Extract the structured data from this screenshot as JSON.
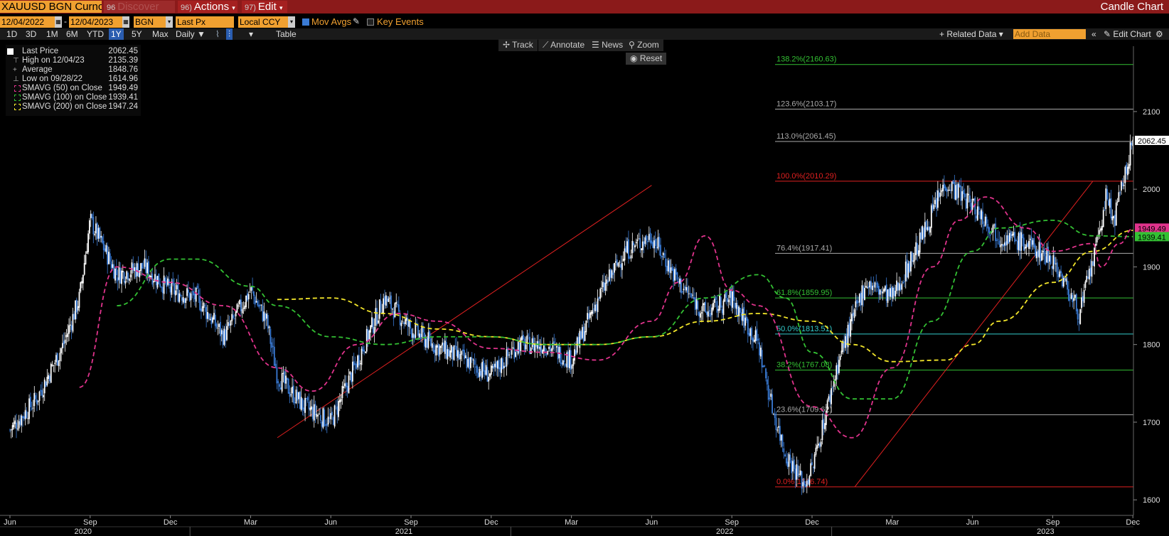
{
  "header": {
    "security": "XAUUSD BGN Curncy",
    "discover_num": "96",
    "discover": "Discover",
    "actions_num": "96)",
    "actions": "Actions",
    "edit_num": "97)",
    "edit": "Edit",
    "chart_type": "Candle Chart"
  },
  "fields": {
    "start_date": "12/04/2022",
    "end_date": "12/04/2023",
    "source": "BGN",
    "price_field": "Last Px",
    "currency": "Local CCY",
    "mov_avgs": "Mov Avgs",
    "key_events": "Key Events"
  },
  "ranges": [
    "1D",
    "3D",
    "1M",
    "6M",
    "YTD",
    "1Y",
    "5Y",
    "Max"
  ],
  "range_active": "1Y",
  "periodicity": "Daily",
  "table_label": "Table",
  "related_data": "Related Data",
  "add_data_placeholder": "Add Data",
  "edit_chart": "Edit Chart",
  "chart_tools": {
    "track": "Track",
    "annotate": "Annotate",
    "news": "News",
    "zoom": "Zoom",
    "reset": "Reset"
  },
  "legend": [
    {
      "label": "Last Price",
      "value": "2062.45",
      "color": "#ffffff",
      "style": "solid"
    },
    {
      "label": "High on 12/04/23",
      "value": "2135.39",
      "color": "#aaaaaa",
      "style": "high"
    },
    {
      "label": "Average",
      "value": "1848.76",
      "color": "#aaaaaa",
      "style": "avg"
    },
    {
      "label": "Low on 09/28/22",
      "value": "1614.96",
      "color": "#aaaaaa",
      "style": "low"
    },
    {
      "label": "SMAVG (50)  on Close",
      "value": "1949.49",
      "color": "#e0338c",
      "style": "dash"
    },
    {
      "label": "SMAVG (100)  on Close",
      "value": "1939.41",
      "color": "#33c033",
      "style": "dash"
    },
    {
      "label": "SMAVG (200)  on Close",
      "value": "1947.24",
      "color": "#f2e52a",
      "style": "dash"
    }
  ],
  "colors": {
    "up_candle": "#ffffff",
    "down_candle": "#3a7bd5",
    "sma50": "#e0338c",
    "sma100": "#33c033",
    "sma200": "#f2e52a",
    "trend": "#e02020",
    "fib_green": "#33c033",
    "fib_gray": "#aaaaaa",
    "fib_red": "#e02020",
    "fib_cyan": "#33cccc"
  },
  "chart_data": {
    "type": "candlestick",
    "title": "",
    "ylim": [
      1580,
      2175
    ],
    "y_ticks": [
      1600,
      1700,
      1800,
      1900,
      2000,
      2100
    ],
    "x_month_labels": [
      "Jun",
      "Sep",
      "Dec",
      "Mar",
      "Jun",
      "Sep",
      "Dec",
      "Mar",
      "Jun",
      "Sep",
      "Dec",
      "Mar",
      "Jun",
      "Sep",
      "Dec"
    ],
    "x_year_labels": [
      "2020",
      "2021",
      "2022",
      "2023"
    ],
    "price_path_month_index": [
      0,
      1,
      2,
      2.6,
      3,
      4,
      5,
      6,
      7,
      8,
      9,
      9.6,
      10,
      11,
      12,
      13,
      14,
      15,
      15.8,
      17,
      18,
      19,
      20,
      21,
      21.5,
      22,
      23,
      24,
      25,
      26,
      27,
      28,
      28.5,
      29,
      29.7,
      30,
      31,
      32,
      33,
      34,
      35,
      36,
      36.5,
      37,
      38,
      39,
      40,
      40.6,
      41,
      41.3,
      42
    ],
    "price_path_close": [
      1690,
      1730,
      1800,
      1860,
      1960,
      1890,
      1900,
      1870,
      1860,
      1810,
      1870,
      1830,
      1760,
      1720,
      1700,
      1780,
      1860,
      1820,
      1800,
      1780,
      1760,
      1800,
      1800,
      1780,
      1820,
      1860,
      1920,
      1940,
      1880,
      1840,
      1860,
      1800,
      1720,
      1660,
      1620,
      1640,
      1780,
      1880,
      1860,
      1930,
      2010,
      1980,
      1960,
      1940,
      1930,
      1910,
      1840,
      1920,
      1990,
      1960,
      2062
    ],
    "sma50": [
      [
        2.6,
        1745
      ],
      [
        4,
        1900
      ],
      [
        6,
        1880
      ],
      [
        8,
        1850
      ],
      [
        10,
        1770
      ],
      [
        11.3,
        1740
      ],
      [
        13,
        1800
      ],
      [
        14.5,
        1840
      ],
      [
        16,
        1830
      ],
      [
        18,
        1795
      ],
      [
        20,
        1790
      ],
      [
        22,
        1780
      ],
      [
        24,
        1830
      ],
      [
        25,
        1880
      ],
      [
        26,
        1940
      ],
      [
        27,
        1870
      ],
      [
        28,
        1850
      ],
      [
        30,
        1720
      ],
      [
        31.5,
        1680
      ],
      [
        33,
        1770
      ],
      [
        34.5,
        1900
      ],
      [
        35.5,
        1960
      ],
      [
        36.5,
        1990
      ],
      [
        38,
        1950
      ],
      [
        39,
        1920
      ],
      [
        40.5,
        1930
      ],
      [
        40.8,
        1900
      ],
      [
        41.5,
        1930
      ],
      [
        42,
        1949
      ]
    ],
    "sma100": [
      [
        4,
        1850
      ],
      [
        6,
        1910
      ],
      [
        7,
        1910
      ],
      [
        9,
        1875
      ],
      [
        10,
        1850
      ],
      [
        12,
        1810
      ],
      [
        14,
        1800
      ],
      [
        16,
        1810
      ],
      [
        18,
        1810
      ],
      [
        20,
        1800
      ],
      [
        22,
        1800
      ],
      [
        24,
        1810
      ],
      [
        26,
        1860
      ],
      [
        28,
        1890
      ],
      [
        29,
        1860
      ],
      [
        30,
        1790
      ],
      [
        31.5,
        1730
      ],
      [
        33,
        1730
      ],
      [
        34.5,
        1830
      ],
      [
        36,
        1920
      ],
      [
        37,
        1950
      ],
      [
        39,
        1960
      ],
      [
        40.5,
        1940
      ],
      [
        42,
        1939
      ]
    ],
    "sma200": [
      [
        10,
        1858
      ],
      [
        12,
        1860
      ],
      [
        14,
        1840
      ],
      [
        16,
        1820
      ],
      [
        18,
        1810
      ],
      [
        20,
        1800
      ],
      [
        22,
        1800
      ],
      [
        24,
        1810
      ],
      [
        26,
        1830
      ],
      [
        28,
        1840
      ],
      [
        30,
        1830
      ],
      [
        31.5,
        1800
      ],
      [
        33,
        1778
      ],
      [
        35,
        1780
      ],
      [
        36,
        1800
      ],
      [
        37,
        1830
      ],
      [
        39,
        1880
      ],
      [
        40.5,
        1920
      ],
      [
        42,
        1947
      ]
    ],
    "trend_lines": [
      {
        "x1": 10,
        "y1": 1680,
        "x2": 24,
        "y2": 2005
      },
      {
        "x1": 31.6,
        "y1": 1616.74,
        "x2": 40.5,
        "y2": 2010.29
      }
    ],
    "fib_levels": [
      {
        "label": "138.2%(2160.63)",
        "value": 2160.63,
        "color": "fib_green"
      },
      {
        "label": "123.6%(2103.17)",
        "value": 2103.17,
        "color": "fib_gray"
      },
      {
        "label": "113.0%(2061.45)",
        "value": 2061.45,
        "color": "fib_gray"
      },
      {
        "label": "100.0%(2010.29)",
        "value": 2010.29,
        "color": "fib_red"
      },
      {
        "label": "76.4%(1917.41)",
        "value": 1917.41,
        "color": "fib_gray"
      },
      {
        "label": "61.8%(1859.95)",
        "value": 1859.95,
        "color": "fib_green"
      },
      {
        "label": "50.0%(1813.51)",
        "value": 1813.51,
        "color": "fib_cyan"
      },
      {
        "label": "38.2%(1767.08)",
        "value": 1767.08,
        "color": "fib_green"
      },
      {
        "label": "23.6%(1709.62)",
        "value": 1709.62,
        "color": "fib_gray"
      },
      {
        "label": "0.0%(1616.74)",
        "value": 1616.74,
        "color": "fib_red"
      }
    ],
    "last_tags": [
      {
        "label": "2062.45",
        "value": 2062.45,
        "bg": "#ffffff",
        "fg": "#000000"
      },
      {
        "label": "1949.49",
        "value": 1949.49,
        "bg": "#e0338c",
        "fg": "#000000"
      },
      {
        "label": "1939.41",
        "value": 1939.41,
        "bg": "#33c033",
        "fg": "#000000"
      }
    ]
  }
}
